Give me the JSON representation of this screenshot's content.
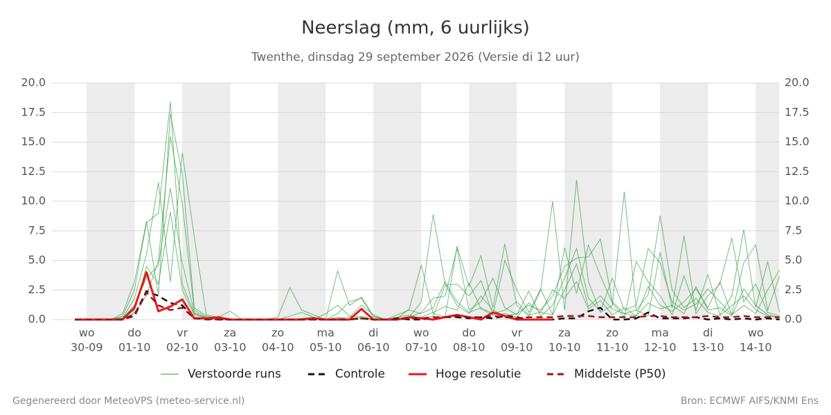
{
  "chart_data": {
    "type": "line",
    "title": "Neerslag (mm, 6 uurlijks)",
    "subtitle": "Twenthe, dinsdag 29 september 2026 (Versie di 12 uur)",
    "categories": [
      null,
      "wo",
      null,
      null,
      null,
      "do",
      null,
      null,
      null,
      "vr",
      null,
      null,
      null,
      "za",
      null,
      null,
      null,
      "zo",
      null,
      null,
      null,
      "ma",
      null,
      null,
      null,
      "di",
      null,
      null,
      null,
      "wo",
      null,
      null,
      null,
      "do",
      null,
      null,
      null,
      "vr",
      null,
      null,
      null,
      "za",
      null,
      null,
      null,
      "zo",
      null,
      null,
      null,
      "ma",
      null,
      null,
      null,
      "di",
      null,
      null,
      null,
      "wo",
      null,
      null
    ],
    "dates": [
      null,
      "30-09",
      null,
      null,
      null,
      "01-10",
      null,
      null,
      null,
      "02-10",
      null,
      null,
      null,
      "03-10",
      null,
      null,
      null,
      "04-10",
      null,
      null,
      null,
      "05-10",
      null,
      null,
      null,
      "06-10",
      null,
      null,
      null,
      "07-10",
      null,
      null,
      null,
      "08-10",
      null,
      null,
      null,
      "09-10",
      null,
      null,
      null,
      "10-10",
      null,
      null,
      null,
      "11-10",
      null,
      null,
      null,
      "12-10",
      null,
      null,
      null,
      "13-10",
      null,
      null,
      null,
      "14-10",
      null,
      null
    ],
    "ylim": [
      0,
      20
    ],
    "yticks": [
      {
        "value": 0,
        "label": "0.0"
      },
      {
        "value": 2.5,
        "label": "2.5"
      },
      {
        "value": 5,
        "label": "5.0"
      },
      {
        "value": 7.5,
        "label": "7.5"
      },
      {
        "value": 10,
        "label": "10.0"
      },
      {
        "value": 12.5,
        "label": "12.5"
      },
      {
        "value": 15,
        "label": "15.0"
      },
      {
        "value": 17.5,
        "label": "17.5"
      },
      {
        "value": 20,
        "label": "20.0"
      }
    ],
    "grid": true,
    "legend": "bottom",
    "series": [
      {
        "name": "Verstoorde runs",
        "color": "#2e9e3e",
        "dashed": false,
        "runs": [
          [
            0,
            0,
            0,
            0,
            0.3,
            2.5,
            8.2,
            9.0,
            18.4,
            3.0,
            0.5,
            0.2,
            0.1,
            0,
            0,
            0,
            0,
            0,
            0,
            0,
            0,
            0,
            0,
            0,
            0.1,
            0,
            0,
            0,
            0.2,
            1.5,
            8.9,
            3.0,
            1.2,
            0.5,
            2.0,
            0.8,
            0.3,
            0.5,
            1.2,
            0.8,
            2.0,
            4.5,
            5.2,
            5.3,
            6.8,
            1.5,
            0.5,
            0.8,
            2.1,
            8.8,
            2.5,
            1.0,
            1.8,
            0.6,
            0.3,
            1.2,
            2.0,
            0.8,
            0.3,
            0.2
          ],
          [
            0,
            0,
            0,
            0,
            0.1,
            1.8,
            5.5,
            11.6,
            3.2,
            14.1,
            7.0,
            0.4,
            0.2,
            0.7,
            0,
            0,
            0,
            0,
            0.3,
            0.6,
            0.2,
            0,
            0.1,
            0.2,
            1.2,
            0.4,
            0,
            0.1,
            0.9,
            4.6,
            0.5,
            0.2,
            6.2,
            2.8,
            5.4,
            1.0,
            6.4,
            1.2,
            0.3,
            2.5,
            10.0,
            0.8,
            11.8,
            3.2,
            0.6,
            1.2,
            10.8,
            0.8,
            0.3,
            5.7,
            1.0,
            7.1,
            0.5,
            2.0,
            3.0,
            6.9,
            1.5,
            3.0,
            0.6,
            0.3
          ],
          [
            0,
            0,
            0,
            0,
            0.5,
            3.2,
            8.3,
            2.1,
            17.4,
            12.3,
            1.0,
            0.3,
            0.1,
            0,
            0,
            0,
            0,
            0.2,
            2.7,
            0.8,
            0.4,
            0,
            4.1,
            1.2,
            1.9,
            0.3,
            0,
            0.2,
            0.4,
            0.1,
            0.3,
            2.9,
            3.0,
            2.0,
            3.3,
            0.4,
            5.0,
            2.5,
            0.6,
            2.6,
            0.4,
            6.1,
            2.2,
            6.3,
            3.7,
            1.4,
            0.2,
            4.9,
            3.2,
            2.0,
            0.4,
            3.7,
            0.8,
            3.8,
            0.4,
            2.0,
            7.6,
            1.0,
            4.9,
            0.6
          ],
          [
            0,
            0,
            0,
            0,
            0.2,
            0.8,
            4.5,
            3.0,
            9.1,
            2.5,
            0.4,
            0.1,
            0,
            0,
            0,
            0,
            0,
            0,
            0,
            0.1,
            0.2,
            0,
            0.5,
            1.5,
            1.8,
            0.2,
            0,
            0.1,
            0.2,
            0.6,
            1.8,
            2.0,
            6.0,
            0.8,
            1.5,
            3.5,
            1.0,
            0.4,
            2.4,
            0.3,
            1.2,
            3.5,
            6.0,
            1.8,
            0.7,
            3.5,
            0.8,
            1.2,
            6.0,
            4.8,
            1.5,
            0.8,
            1.3,
            2.6,
            1.5,
            0.4,
            4.8,
            6.3,
            0.8,
            3.7
          ],
          [
            0,
            0,
            0,
            0,
            0,
            0.6,
            2.0,
            5.0,
            15.5,
            9.8,
            0.8,
            0.2,
            0,
            0,
            0,
            0,
            0,
            0,
            0,
            0,
            0,
            0.5,
            1.2,
            0.3,
            0.2,
            0,
            0,
            0.4,
            0.8,
            0.5,
            1.0,
            3.2,
            1.5,
            0.6,
            1.0,
            0.5,
            0.8,
            1.5,
            0.4,
            0.6,
            2.5,
            1.8,
            3.2,
            0.9,
            1.6,
            0.4,
            1.0,
            0.3,
            2.8,
            1.2,
            0.7,
            1.5,
            2.6,
            1.0,
            3.2,
            0.4,
            1.2,
            0.5,
            2.5,
            4.2
          ],
          [
            0,
            0,
            0,
            0,
            0.1,
            1.2,
            3.5,
            4.6,
            11.1,
            4.8,
            0.6,
            0.1,
            0,
            0,
            0,
            0,
            0,
            0,
            0,
            0,
            0,
            0,
            0.2,
            0,
            0.3,
            0,
            0,
            0,
            0.1,
            0.2,
            0.6,
            1.1,
            0.8,
            3.1,
            0.9,
            0.4,
            0.5,
            0.2,
            1.4,
            0.6,
            0.4,
            2.5,
            4.7,
            1.1,
            2.0,
            0.9,
            0.5,
            0.3,
            1.4,
            0.9,
            1.2,
            0.5,
            2.8,
            0.8,
            1.0,
            0.3,
            2.6,
            1.2,
            0.4,
            0.2
          ]
        ]
      },
      {
        "name": "Controle",
        "color": "#111111",
        "dashed": true,
        "values": [
          0,
          0,
          0,
          0,
          0,
          0.4,
          2.4,
          2.0,
          1.4,
          1.2,
          0.1,
          0.1,
          0,
          0,
          0,
          0,
          0,
          0,
          0,
          0,
          0,
          0,
          0,
          0,
          0.1,
          0,
          0,
          0.1,
          0,
          0,
          0.1,
          0.2,
          0.2,
          0.1,
          0.2,
          0.1,
          0.3,
          0.2,
          0,
          0,
          0,
          0.1,
          0.1,
          0.7,
          1.0,
          0,
          0,
          0.1,
          0.6,
          0.1,
          0.1,
          0.1,
          0.2,
          0,
          0.1,
          0,
          0.1,
          0,
          0.1,
          0
        ]
      },
      {
        "name": "Hoge resolutie",
        "color": "#e31a1c",
        "dashed": false,
        "values": [
          0,
          0,
          0,
          0,
          0,
          1.0,
          4.0,
          0.7,
          1.1,
          1.7,
          0.1,
          0.1,
          0.2,
          0,
          0,
          0,
          0,
          0,
          0,
          0,
          0.1,
          0,
          0,
          0,
          0.9,
          0,
          0,
          0,
          0.2,
          0.1,
          0,
          0.2,
          0.4,
          0.2,
          0,
          0.6,
          0.3,
          0,
          0,
          0,
          0,
          null,
          null,
          null,
          null,
          null,
          null,
          null,
          null,
          null,
          null,
          null,
          null,
          null,
          null,
          null,
          null,
          null,
          null,
          null
        ]
      },
      {
        "name": "Middelste (P50)",
        "color": "#a50f15",
        "dashed": true,
        "values": [
          0,
          0,
          0,
          0,
          0,
          0.3,
          2.3,
          1.2,
          0.8,
          1.0,
          0.1,
          0,
          0,
          0,
          0,
          0,
          0,
          0,
          0,
          0,
          0,
          0,
          0,
          0,
          0.1,
          0,
          0,
          0,
          0.1,
          0.1,
          0.2,
          0.2,
          0.3,
          0.2,
          0.2,
          0.3,
          0.2,
          0.1,
          0.2,
          0.2,
          0.2,
          0.3,
          0.3,
          0.3,
          0.2,
          0.2,
          0.2,
          0.2,
          0.3,
          0.3,
          0.2,
          0.2,
          0.2,
          0.3,
          0.2,
          0.2,
          0.3,
          0.2,
          0.2,
          0.2
        ]
      }
    ]
  },
  "footer": {
    "left": "Gegenereerd door MeteoVPS (meteo-service.nl)",
    "right": "Bron: ECMWF AIFS/KNMI Ens"
  }
}
